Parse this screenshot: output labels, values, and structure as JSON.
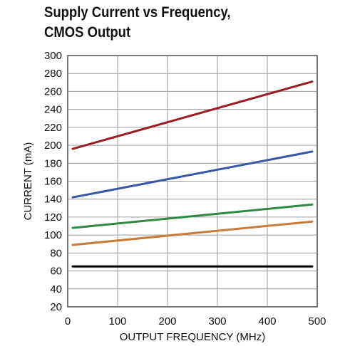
{
  "chart_data": {
    "type": "line",
    "title_lines": [
      "Supply Current vs Frequency,",
      "CMOS Output"
    ],
    "xlabel": "OUTPUT FREQUENCY (MHz)",
    "ylabel": "CURRENT (mA)",
    "xlim": [
      0,
      500
    ],
    "ylim": [
      20,
      300
    ],
    "xticks": [
      0,
      100,
      200,
      300,
      400,
      500
    ],
    "yticks": [
      20,
      40,
      60,
      80,
      100,
      120,
      140,
      160,
      180,
      200,
      220,
      240,
      260,
      280,
      300
    ],
    "grid": true,
    "legend": "none",
    "series": [
      {
        "color": "#9b1c24",
        "x": [
          10,
          490
        ],
        "y": [
          196,
          271
        ]
      },
      {
        "color": "#3a57a6",
        "x": [
          10,
          490
        ],
        "y": [
          142,
          193
        ]
      },
      {
        "color": "#2e8b45",
        "x": [
          10,
          490
        ],
        "y": [
          108,
          134
        ]
      },
      {
        "color": "#c97b3a",
        "x": [
          10,
          490
        ],
        "y": [
          89,
          115
        ]
      },
      {
        "color": "#000000",
        "x": [
          10,
          490
        ],
        "y": [
          65,
          65
        ]
      }
    ]
  }
}
